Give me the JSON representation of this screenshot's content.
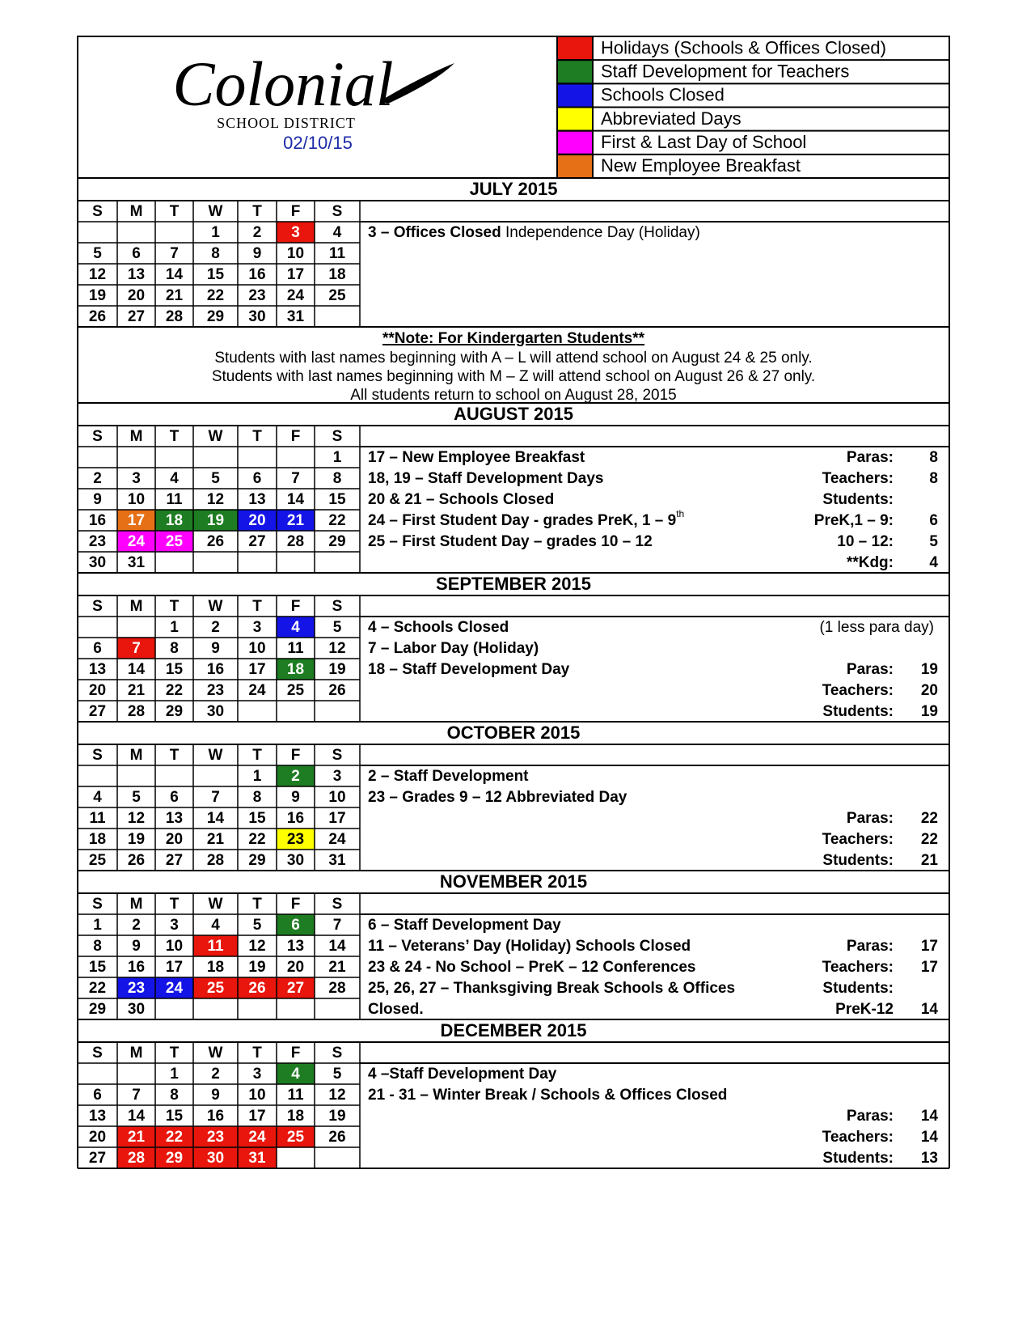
{
  "header": {
    "logo": "Colonial",
    "district": "SCHOOL DISTRICT",
    "date": "02/10/15"
  },
  "legend": [
    {
      "label": "Holidays (Schools & Offices Closed)",
      "color": "#e8160c"
    },
    {
      "label": "Staff Development for Teachers",
      "color": "#1e7d22"
    },
    {
      "label": "Schools Closed",
      "color": "#1414e6"
    },
    {
      "label": "Abbreviated Days",
      "color": "#ffff00"
    },
    {
      "label": "First & Last Day of School",
      "color": "#ff00ff"
    },
    {
      "label": "New Employee Breakfast",
      "color": "#e57016"
    }
  ],
  "weekdays": [
    "S",
    "M",
    "T",
    "W",
    "T",
    "F",
    "S"
  ],
  "kindergarten": {
    "title": "**Note: For Kindergarten Students**",
    "lines": [
      "Students with last names beginning with A – L will attend school on August 24 & 25 only.",
      "Students with last names beginning with M – Z will attend school on August 26 & 27 only.",
      "All students return to school on August 28, 2015"
    ]
  },
  "months": [
    {
      "title": "JULY 2015",
      "weeks": [
        [
          null,
          null,
          null,
          1,
          2,
          3,
          4
        ],
        [
          5,
          6,
          7,
          8,
          9,
          10,
          11
        ],
        [
          12,
          13,
          14,
          15,
          16,
          17,
          18
        ],
        [
          19,
          20,
          21,
          22,
          23,
          24,
          25
        ],
        [
          26,
          27,
          28,
          29,
          30,
          31,
          null
        ]
      ],
      "marked": [
        {
          "day": 3,
          "legend": 0
        }
      ],
      "notes": [
        {
          "bold": "3 – Offices Closed",
          "normal": " Independence Day (Holiday)"
        }
      ],
      "stats": []
    },
    {
      "title": "AUGUST 2015",
      "weeks": [
        [
          null,
          null,
          null,
          null,
          null,
          null,
          1
        ],
        [
          2,
          3,
          4,
          5,
          6,
          7,
          8
        ],
        [
          9,
          10,
          11,
          12,
          13,
          14,
          15
        ],
        [
          16,
          17,
          18,
          19,
          20,
          21,
          22
        ],
        [
          23,
          24,
          25,
          26,
          27,
          28,
          29
        ],
        [
          30,
          31,
          null,
          null,
          null,
          null,
          null
        ]
      ],
      "marked": [
        {
          "day": 17,
          "legend": 5
        },
        {
          "day": 18,
          "legend": 1
        },
        {
          "day": 19,
          "legend": 1
        },
        {
          "day": 20,
          "legend": 2
        },
        {
          "day": 21,
          "legend": 2
        },
        {
          "day": 24,
          "legend": 4
        },
        {
          "day": 25,
          "legend": 4
        }
      ],
      "notes": [
        "17 – New Employee Breakfast",
        "18, 19 – Staff Development Days",
        "20 & 21 – Schools Closed",
        {
          "bold": "24 – First Student Day -  grades PreK, 1 – 9",
          "sup": "th"
        },
        "25 – First Student Day – grades 10 – 12"
      ],
      "stats": [
        {
          "label": "Paras:",
          "value": 8
        },
        {
          "label": "Teachers:",
          "value": 8
        },
        {
          "label": "Students:"
        },
        {
          "label": "PreK,1 – 9:",
          "value": 6
        },
        {
          "label": "10 – 12:",
          "value": 5
        },
        {
          "label": "**Kdg:",
          "value": 4
        }
      ]
    },
    {
      "title": "SEPTEMBER 2015",
      "weeks": [
        [
          null,
          null,
          1,
          2,
          3,
          4,
          5
        ],
        [
          6,
          7,
          8,
          9,
          10,
          11,
          12
        ],
        [
          13,
          14,
          15,
          16,
          17,
          18,
          19
        ],
        [
          20,
          21,
          22,
          23,
          24,
          25,
          26
        ],
        [
          27,
          28,
          29,
          30,
          null,
          null,
          null
        ]
      ],
      "marked": [
        {
          "day": 4,
          "legend": 2
        },
        {
          "day": 7,
          "legend": 0
        },
        {
          "day": 18,
          "legend": 1
        }
      ],
      "side_note": "(1 less para day)",
      "notes": [
        "4 – Schools Closed",
        "7 – Labor Day (Holiday)",
        "18 – Staff Development Day"
      ],
      "stats": [
        {
          "label": "Paras:",
          "value": 19
        },
        {
          "label": "Teachers:",
          "value": 20
        },
        {
          "label": "Students:",
          "value": 19
        }
      ]
    },
    {
      "title": "OCTOBER 2015",
      "weeks": [
        [
          null,
          null,
          null,
          null,
          1,
          2,
          3
        ],
        [
          4,
          5,
          6,
          7,
          8,
          9,
          10
        ],
        [
          11,
          12,
          13,
          14,
          15,
          16,
          17
        ],
        [
          18,
          19,
          20,
          21,
          22,
          23,
          24
        ],
        [
          25,
          26,
          27,
          28,
          29,
          30,
          31
        ]
      ],
      "marked": [
        {
          "day": 2,
          "legend": 1
        },
        {
          "day": 23,
          "legend": 3
        }
      ],
      "notes": [
        "2 – Staff Development",
        "23   – Grades 9 – 12  Abbreviated Day"
      ],
      "stats": [
        {
          "label": "Paras:",
          "value": 22
        },
        {
          "label": "Teachers:",
          "value": 22
        },
        {
          "label": "Students:",
          "value": 21
        }
      ]
    },
    {
      "title": "NOVEMBER 2015",
      "weeks": [
        [
          1,
          2,
          3,
          4,
          5,
          6,
          7
        ],
        [
          8,
          9,
          10,
          11,
          12,
          13,
          14
        ],
        [
          15,
          16,
          17,
          18,
          19,
          20,
          21
        ],
        [
          22,
          23,
          24,
          25,
          26,
          27,
          28
        ],
        [
          29,
          30,
          null,
          null,
          null,
          null,
          null
        ]
      ],
      "marked": [
        {
          "day": 6,
          "legend": 1
        },
        {
          "day": 11,
          "legend": 0
        },
        {
          "day": 23,
          "legend": 2
        },
        {
          "day": 24,
          "legend": 2
        },
        {
          "day": 25,
          "legend": 0
        },
        {
          "day": 26,
          "legend": 0
        },
        {
          "day": 27,
          "legend": 0
        }
      ],
      "notes": [
        "6 – Staff Development Day",
        "11  – Veterans’ Day (Holiday) Schools Closed",
        "23 & 24 - No School – PreK – 12 Conferences",
        "25, 26, 27 – Thanksgiving Break  Schools & Offices",
        "Closed."
      ],
      "stats": [
        {
          "label": "Paras:",
          "value": 17
        },
        {
          "label": "Teachers:",
          "value": 17
        },
        {
          "label": "Students:"
        },
        {
          "label": "PreK-12",
          "value": 14
        }
      ]
    },
    {
      "title": "DECEMBER 2015",
      "weeks": [
        [
          null,
          null,
          1,
          2,
          3,
          4,
          5
        ],
        [
          6,
          7,
          8,
          9,
          10,
          11,
          12
        ],
        [
          13,
          14,
          15,
          16,
          17,
          18,
          19
        ],
        [
          20,
          21,
          22,
          23,
          24,
          25,
          26
        ],
        [
          27,
          28,
          29,
          30,
          31,
          null,
          null
        ]
      ],
      "marked": [
        {
          "day": 4,
          "legend": 1
        },
        {
          "day": 21,
          "legend": 0
        },
        {
          "day": 22,
          "legend": 0
        },
        {
          "day": 23,
          "legend": 0
        },
        {
          "day": 24,
          "legend": 0
        },
        {
          "day": 25,
          "legend": 0
        },
        {
          "day": 28,
          "legend": 0
        },
        {
          "day": 29,
          "legend": 0
        },
        {
          "day": 30,
          "legend": 0
        },
        {
          "day": 31,
          "legend": 0
        }
      ],
      "notes": [
        "4 –Staff Development Day",
        "21 - 31 – Winter Break / Schools & Offices Closed"
      ],
      "stats": [
        {
          "label": "Paras:",
          "value": 14
        },
        {
          "label": "Teachers:",
          "value": 14
        },
        {
          "label": "Students:",
          "value": 13
        }
      ]
    }
  ]
}
